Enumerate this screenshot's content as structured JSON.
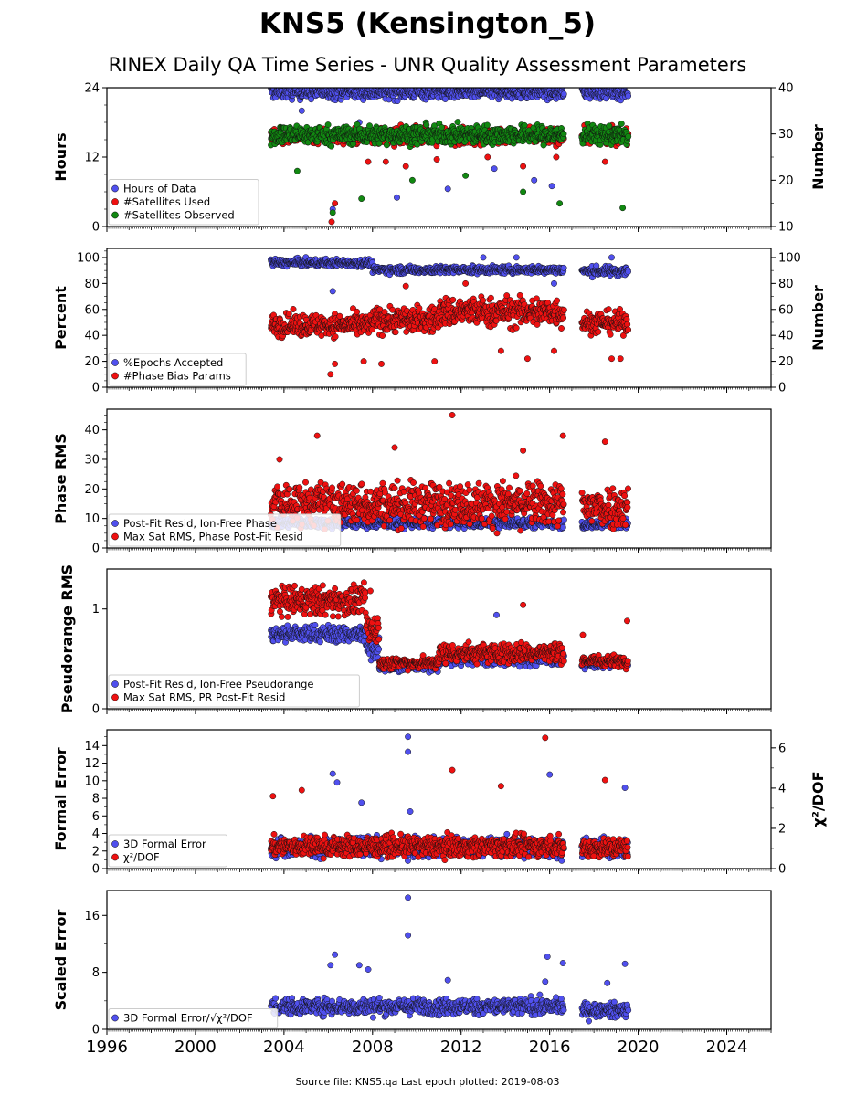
{
  "title": "KNS5 (Kensington_5)",
  "subtitle": "RINEX Daily QA Time Series - UNR Quality Assessment Parameters",
  "footer": "Source file: KNS5.qa Last epoch plotted: 2019-08-03",
  "colors": {
    "blue": "#5050ee",
    "red": "#ee1111",
    "green": "#118811"
  },
  "chart_data": [
    {
      "type": "scatter",
      "ylabel": "Hours",
      "ylabel_right": "Number",
      "xlim": [
        1996,
        2026
      ],
      "xticks": [
        1996,
        2000,
        2004,
        2008,
        2012,
        2016,
        2020,
        2024
      ],
      "ylim": [
        0,
        24
      ],
      "yticks": [
        0,
        12,
        24
      ],
      "ylim_right": [
        10,
        40
      ],
      "yticks_right": [
        10,
        20,
        30,
        40
      ],
      "legend": "lower-left",
      "series": [
        {
          "name": "Hours of Data",
          "color": "blue",
          "axis": "left",
          "segments": [
            [
              2003.4,
              2016.65,
              23.3,
              0.9
            ],
            [
              2017.45,
              2019.55,
              23.3,
              0.9
            ]
          ],
          "outliers": [
            [
              2006.2,
              3.0
            ],
            [
              2009.1,
              5.0
            ],
            [
              2011.4,
              6.5
            ],
            [
              2013.5,
              10.0
            ],
            [
              2015.3,
              8.0
            ],
            [
              2016.1,
              7.0
            ],
            [
              2004.8,
              20.0
            ],
            [
              2007.4,
              18.0
            ],
            [
              2012.7,
              17.0
            ]
          ]
        },
        {
          "name": "#Satellites Used",
          "color": "red",
          "axis": "right",
          "segments": [
            [
              2003.4,
              2016.65,
              29.5,
              1.2
            ],
            [
              2017.45,
              2019.55,
              29.5,
              1.2
            ]
          ],
          "outliers": [
            [
              2006.15,
              11.0
            ],
            [
              2006.3,
              15.0
            ],
            [
              2007.8,
              24.0
            ],
            [
              2008.6,
              24.0
            ],
            [
              2009.5,
              23.0
            ],
            [
              2010.9,
              24.5
            ],
            [
              2013.2,
              25.0
            ],
            [
              2014.8,
              23.0
            ],
            [
              2016.3,
              25.0
            ],
            [
              2018.5,
              24.0
            ]
          ]
        },
        {
          "name": "#Satellites Observed",
          "color": "green",
          "axis": "right",
          "segments": [
            [
              2003.4,
              2016.65,
              29.8,
              1.4
            ],
            [
              2017.45,
              2019.55,
              29.8,
              1.4
            ]
          ],
          "outliers": [
            [
              2006.2,
              13.0
            ],
            [
              2007.5,
              16.0
            ],
            [
              2004.6,
              22.0
            ],
            [
              2009.8,
              20.0
            ],
            [
              2012.2,
              21.0
            ],
            [
              2014.8,
              17.5
            ],
            [
              2016.45,
              15.0
            ],
            [
              2019.3,
              14.0
            ]
          ]
        }
      ]
    },
    {
      "type": "scatter",
      "ylabel": "Percent",
      "ylabel_right": "Number",
      "xlim": [
        1996,
        2026
      ],
      "ylim": [
        0,
        107
      ],
      "yticks": [
        0,
        20,
        40,
        60,
        80,
        100
      ],
      "ylim_right": [
        0,
        107
      ],
      "yticks_right": [
        0,
        20,
        40,
        60,
        80,
        100
      ],
      "legend": "lower-left",
      "series": [
        {
          "name": "%Epochs Accepted",
          "color": "blue",
          "axis": "left",
          "segments": [
            [
              2003.4,
              2008.0,
              96.0,
              2.0
            ],
            [
              2008.0,
              2016.65,
              90.5,
              2.0
            ],
            [
              2017.45,
              2019.55,
              89.5,
              2.5
            ]
          ],
          "outliers": [
            [
              2006.2,
              74.0
            ],
            [
              2013.0,
              100.0
            ],
            [
              2014.5,
              100.0
            ],
            [
              2018.8,
              100.0
            ],
            [
              2016.2,
              80.0
            ]
          ]
        },
        {
          "name": "#Phase Bias Params",
          "color": "red",
          "axis": "right",
          "segments": [
            [
              2003.4,
              2008.0,
              48.0,
              6.0
            ],
            [
              2008.0,
              2011.0,
              52.0,
              7.0
            ],
            [
              2011.0,
              2016.65,
              58.0,
              8.0
            ],
            [
              2017.45,
              2019.55,
              50.0,
              6.0
            ]
          ],
          "outliers": [
            [
              2006.1,
              10.0
            ],
            [
              2006.3,
              18.0
            ],
            [
              2007.6,
              20.0
            ],
            [
              2008.4,
              18.0
            ],
            [
              2010.8,
              20.0
            ],
            [
              2013.8,
              28.0
            ],
            [
              2015.0,
              22.0
            ],
            [
              2016.2,
              28.0
            ],
            [
              2018.8,
              22.0
            ],
            [
              2019.2,
              22.0
            ],
            [
              2009.5,
              78.0
            ],
            [
              2012.2,
              80.0
            ]
          ]
        }
      ]
    },
    {
      "type": "scatter",
      "ylabel": "Phase RMS",
      "xlim": [
        1996,
        2026
      ],
      "ylim": [
        0,
        47
      ],
      "yticks": [
        0,
        10,
        20,
        30,
        40
      ],
      "legend": "lower-left",
      "series": [
        {
          "name": "Post-Fit Resid, Ion-Free Phase",
          "color": "blue",
          "segments": [
            [
              2003.4,
              2016.65,
              8.5,
              1.2
            ],
            [
              2017.45,
              2019.55,
              8.0,
              1.2
            ]
          ],
          "outliers": []
        },
        {
          "name": "Max Sat RMS, Phase Post-Fit Resid",
          "color": "red",
          "segments": [
            [
              2003.4,
              2016.65,
              15.0,
              5.0
            ],
            [
              2017.45,
              2019.55,
              14.0,
              5.0
            ]
          ],
          "outliers": [
            [
              2011.6,
              45.0
            ],
            [
              2005.5,
              38.0
            ],
            [
              2016.6,
              38.0
            ],
            [
              2018.5,
              36.0
            ],
            [
              2009.0,
              34.0
            ],
            [
              2014.8,
              33.0
            ],
            [
              2003.8,
              30.0
            ]
          ]
        }
      ]
    },
    {
      "type": "scatter",
      "ylabel": "Pseudorange RMS",
      "xlim": [
        1996,
        2026
      ],
      "ylim": [
        0,
        1.4
      ],
      "yticks": [
        0,
        1
      ],
      "legend": "lower-left",
      "series": [
        {
          "name": "Post-Fit Resid, Ion-Free Pseudorange",
          "color": "blue",
          "segments": [
            [
              2003.4,
              2007.7,
              0.75,
              0.06
            ],
            [
              2007.7,
              2008.3,
              0.6,
              0.08
            ],
            [
              2008.3,
              2011.0,
              0.42,
              0.03
            ],
            [
              2011.0,
              2016.65,
              0.5,
              0.05
            ],
            [
              2017.45,
              2019.55,
              0.45,
              0.03
            ]
          ],
          "outliers": [
            [
              2013.6,
              0.94
            ]
          ]
        },
        {
          "name": "Max Sat RMS, PR Post-Fit Resid",
          "color": "red",
          "segments": [
            [
              2003.4,
              2007.7,
              1.08,
              0.1
            ],
            [
              2007.7,
              2008.3,
              0.8,
              0.12
            ],
            [
              2008.3,
              2011.0,
              0.46,
              0.04
            ],
            [
              2011.0,
              2016.65,
              0.56,
              0.07
            ],
            [
              2017.45,
              2019.55,
              0.48,
              0.04
            ]
          ],
          "outliers": [
            [
              2007.9,
              1.18
            ],
            [
              2014.8,
              1.04
            ],
            [
              2019.5,
              0.88
            ],
            [
              2017.5,
              0.74
            ]
          ]
        }
      ]
    },
    {
      "type": "scatter",
      "ylabel": "Formal Error",
      "ylabel_right": "χ²/DOF",
      "xlim": [
        1996,
        2026
      ],
      "ylim": [
        0,
        15.8
      ],
      "yticks": [
        0,
        2,
        4,
        6,
        8,
        10,
        12,
        14
      ],
      "ylim_right": [
        0,
        6.9
      ],
      "yticks_right": [
        0,
        2,
        4,
        6
      ],
      "legend": "lower-left",
      "series": [
        {
          "name": "3D Formal Error",
          "color": "blue",
          "axis": "left",
          "segments": [
            [
              2003.4,
              2016.65,
              2.4,
              0.8
            ],
            [
              2017.45,
              2019.55,
              2.3,
              0.8
            ]
          ],
          "outliers": [
            [
              2009.6,
              15.0
            ],
            [
              2009.6,
              13.3
            ],
            [
              2006.2,
              10.8
            ],
            [
              2006.4,
              9.8
            ],
            [
              2016.0,
              10.7
            ],
            [
              2019.4,
              9.2
            ],
            [
              2007.5,
              7.5
            ],
            [
              2009.7,
              6.5
            ]
          ]
        },
        {
          "name": "χ²/DOF",
          "color": "red",
          "axis": "right",
          "segments": [
            [
              2003.4,
              2016.65,
              1.1,
              0.35
            ],
            [
              2017.45,
              2019.55,
              1.05,
              0.35
            ]
          ],
          "outliers": [
            [
              2015.8,
              6.5
            ],
            [
              2011.6,
              4.9
            ],
            [
              2013.8,
              4.1
            ],
            [
              2004.8,
              3.9
            ],
            [
              2018.5,
              4.4
            ],
            [
              2003.5,
              3.6
            ]
          ]
        }
      ]
    },
    {
      "type": "scatter",
      "ylabel": "Scaled Error",
      "xlim": [
        1996,
        2026
      ],
      "ylim": [
        0,
        19.5
      ],
      "yticks": [
        0,
        8,
        16
      ],
      "legend": "lower-left",
      "series": [
        {
          "name": "3D Formal Error/√χ²/DOF",
          "color": "blue",
          "segments": [
            [
              2003.4,
              2016.65,
              3.2,
              0.8
            ],
            [
              2017.45,
              2019.55,
              2.7,
              0.7
            ]
          ],
          "outliers": [
            [
              2009.6,
              18.5
            ],
            [
              2009.6,
              13.2
            ],
            [
              2006.3,
              10.5
            ],
            [
              2006.1,
              9.0
            ],
            [
              2015.9,
              10.2
            ],
            [
              2016.6,
              9.3
            ],
            [
              2019.4,
              9.2
            ],
            [
              2007.4,
              9.0
            ],
            [
              2007.8,
              8.4
            ],
            [
              2011.4,
              6.9
            ],
            [
              2018.6,
              6.5
            ],
            [
              2015.8,
              6.7
            ]
          ]
        }
      ]
    }
  ]
}
